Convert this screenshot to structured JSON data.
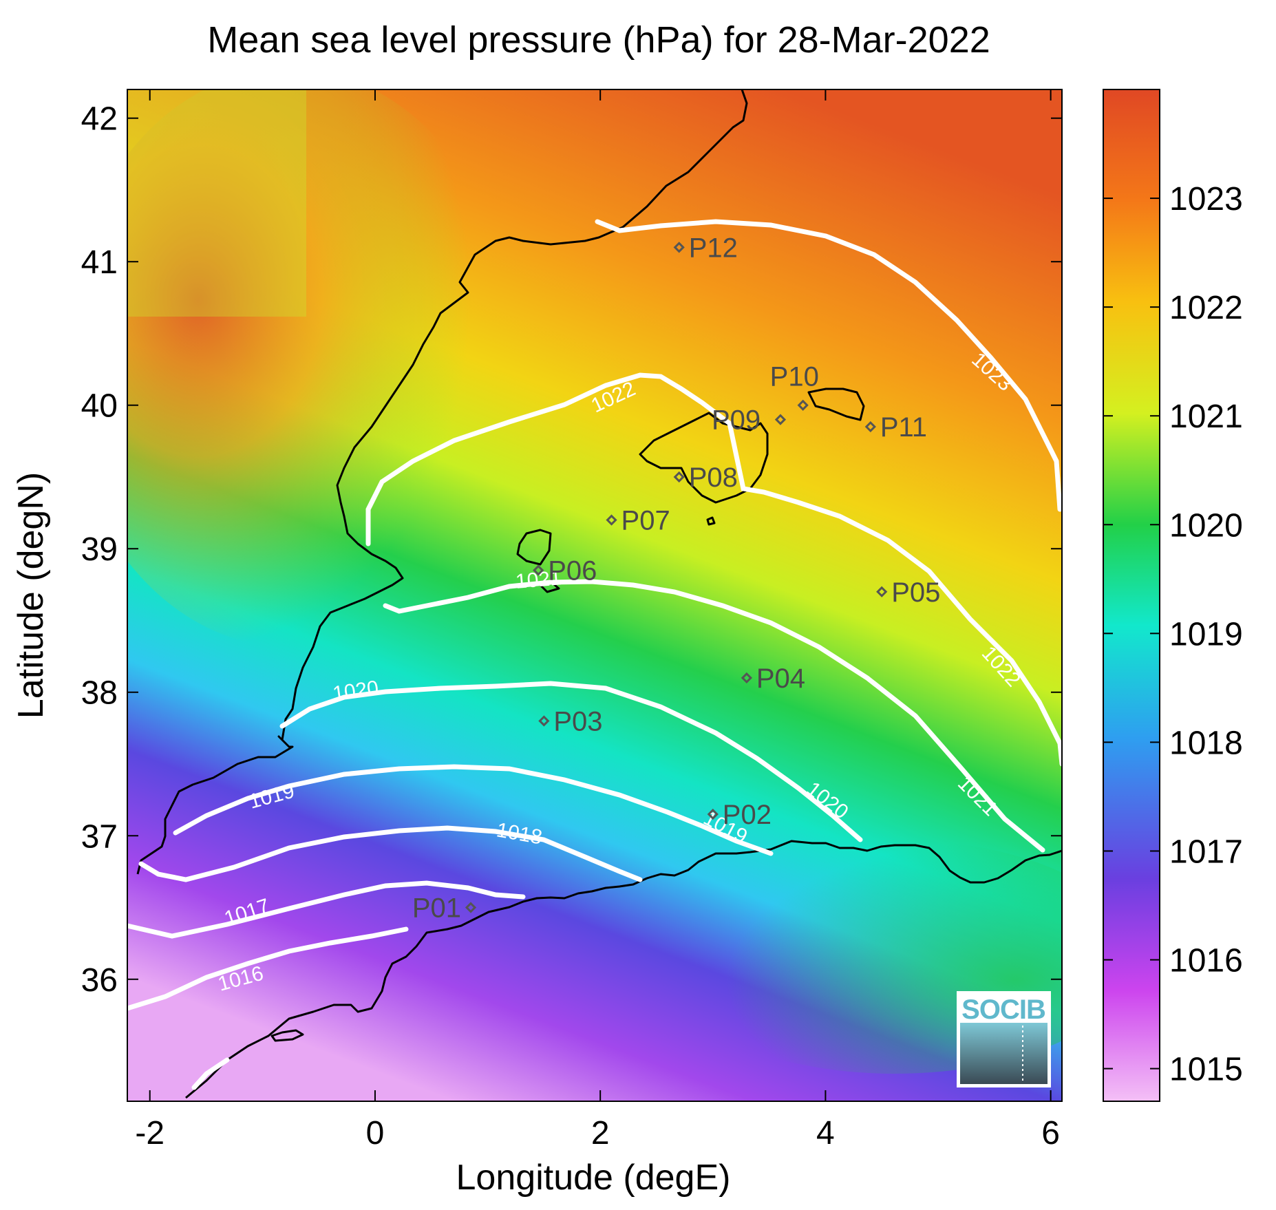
{
  "title": "Mean sea level pressure (hPa) for 28-Mar-2022",
  "xlabel": "Longitude (degE)",
  "ylabel": "Latitude (degN)",
  "xlim": [
    -2.2,
    6.1
  ],
  "ylim": [
    35.15,
    42.2
  ],
  "x_ticks": [
    {
      "value": -2,
      "label": "-2"
    },
    {
      "value": 0,
      "label": "0"
    },
    {
      "value": 2,
      "label": "2"
    },
    {
      "value": 4,
      "label": "4"
    },
    {
      "value": 6,
      "label": "6"
    }
  ],
  "y_ticks": [
    {
      "value": 36,
      "label": "36"
    },
    {
      "value": 37,
      "label": "37"
    },
    {
      "value": 38,
      "label": "38"
    },
    {
      "value": 39,
      "label": "39"
    },
    {
      "value": 40,
      "label": "40"
    },
    {
      "value": 41,
      "label": "41"
    },
    {
      "value": 42,
      "label": "42"
    }
  ],
  "colorbar": {
    "range": [
      1014.7,
      1024.0
    ],
    "ticks": [
      {
        "value": 1015,
        "label": "1015"
      },
      {
        "value": 1016,
        "label": "1016"
      },
      {
        "value": 1017,
        "label": "1017"
      },
      {
        "value": 1018,
        "label": "1018"
      },
      {
        "value": 1019,
        "label": "1019"
      },
      {
        "value": 1020,
        "label": "1020"
      },
      {
        "value": 1021,
        "label": "1021"
      },
      {
        "value": 1022,
        "label": "1022"
      },
      {
        "value": 1023,
        "label": "1023"
      }
    ],
    "colors": [
      "#f4c0f6",
      "#cc44ee",
      "#6a3fe0",
      "#2e9ff0",
      "#12e8cc",
      "#22d048",
      "#d4f020",
      "#f8c010",
      "#f47818",
      "#e04824"
    ]
  },
  "contours": [
    {
      "level": 1016,
      "label": "1016"
    },
    {
      "level": 1017,
      "label": "1017"
    },
    {
      "level": 1018,
      "label": "1018"
    },
    {
      "level": 1019,
      "label": "1019"
    },
    {
      "level": 1020,
      "label": "1020"
    },
    {
      "level": 1021,
      "label": "1021"
    },
    {
      "level": 1022,
      "label": "1022"
    },
    {
      "level": 1023,
      "label": "1023"
    }
  ],
  "stations": [
    {
      "name": "P01",
      "lon": 0.85,
      "lat": 36.5
    },
    {
      "name": "P02",
      "lon": 3.0,
      "lat": 37.15
    },
    {
      "name": "P03",
      "lon": 1.5,
      "lat": 37.8
    },
    {
      "name": "P04",
      "lon": 3.3,
      "lat": 38.1
    },
    {
      "name": "P05",
      "lon": 4.5,
      "lat": 38.7
    },
    {
      "name": "P06",
      "lon": 1.45,
      "lat": 38.85
    },
    {
      "name": "P07",
      "lon": 2.1,
      "lat": 39.2
    },
    {
      "name": "P08",
      "lon": 2.7,
      "lat": 39.5
    },
    {
      "name": "P09",
      "lon": 3.6,
      "lat": 39.9
    },
    {
      "name": "P10",
      "lon": 3.8,
      "lat": 40.0
    },
    {
      "name": "P11",
      "lon": 4.4,
      "lat": 39.85
    },
    {
      "name": "P12",
      "lon": 2.7,
      "lat": 41.1
    }
  ],
  "logo": {
    "text": "SOCIB"
  }
}
